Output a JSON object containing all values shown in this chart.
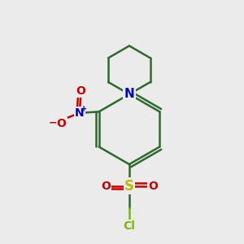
{
  "bg_color": "#ebebeb",
  "bond_color": "#2d6b2d",
  "bond_width": 1.8,
  "N_color": "#0000cc",
  "O_color": "#cc0000",
  "S_color": "#bbbb00",
  "Cl_color": "#77bb00",
  "figsize": [
    3.0,
    3.0
  ],
  "dpi": 100,
  "xlim": [
    0,
    10
  ],
  "ylim": [
    0,
    10
  ]
}
